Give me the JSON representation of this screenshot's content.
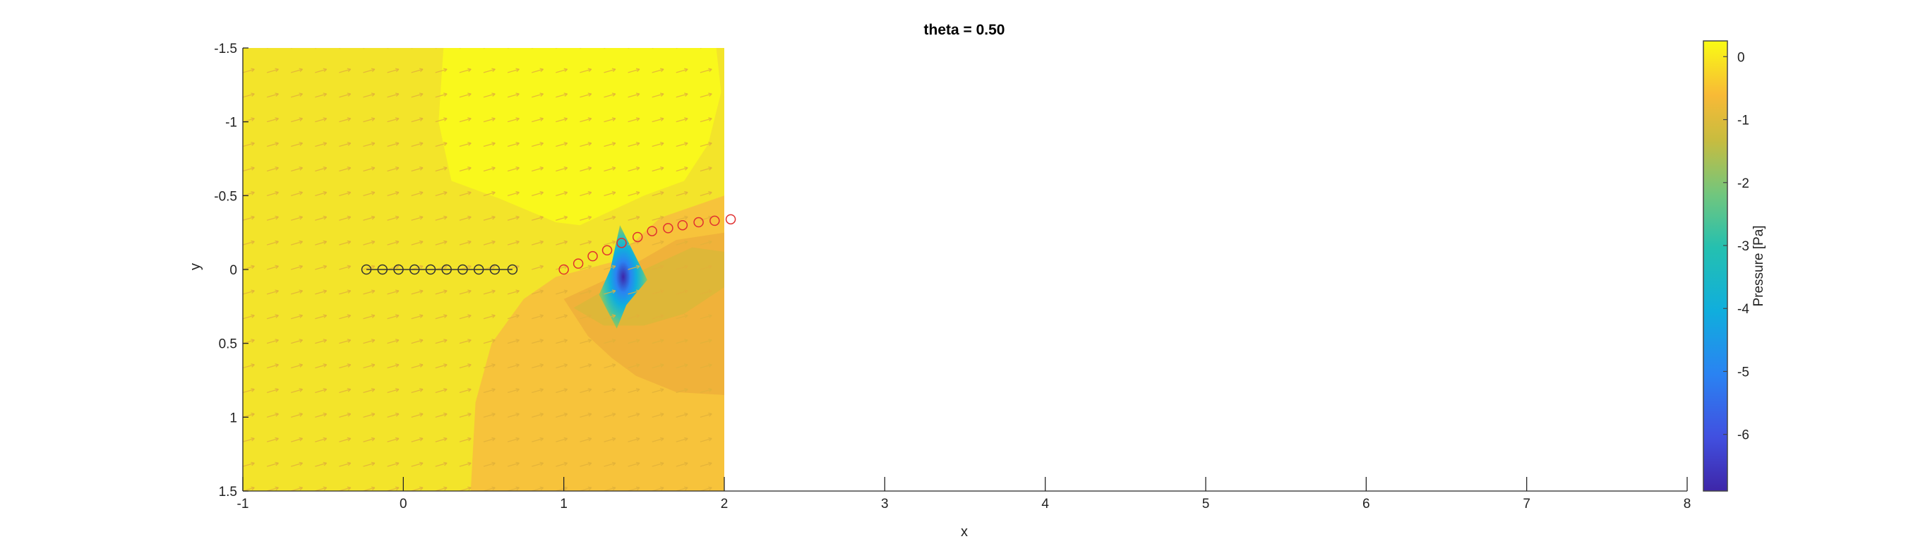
{
  "chart_data": {
    "type": "heatmap",
    "title": "theta = 0.50",
    "xlabel": "x",
    "ylabel": "y",
    "xlim": [
      -1,
      8
    ],
    "ylim": [
      -1.5,
      1.5
    ],
    "y_reversed": true,
    "x_ticks": [
      -1,
      0,
      1,
      2,
      3,
      4,
      5,
      6,
      7,
      8
    ],
    "y_ticks": [
      -1.5,
      -1,
      -0.5,
      0,
      0.5,
      1,
      1.5
    ],
    "field_extent": {
      "x": [
        -1,
        2
      ],
      "y": [
        -1.5,
        1.5
      ]
    },
    "colorbar": {
      "label": "Pressure [Pa]",
      "range": [
        -6.9,
        0.25
      ],
      "ticks": [
        0,
        -1,
        -2,
        -3,
        -4,
        -5,
        -6
      ]
    },
    "black_markers": {
      "color": "#333333",
      "connected": true,
      "x": [
        -0.23,
        -0.13,
        -0.03,
        0.07,
        0.17,
        0.27,
        0.37,
        0.47,
        0.57,
        0.68
      ],
      "y": [
        0,
        0,
        0,
        0,
        0,
        0,
        0,
        0,
        0,
        0
      ]
    },
    "red_markers": {
      "color": "#e03030",
      "connected": false,
      "x": [
        1.0,
        1.09,
        1.18,
        1.27,
        1.36,
        1.46,
        1.55,
        1.65,
        1.74,
        1.84,
        1.94,
        2.04
      ],
      "y": [
        0,
        -0.04,
        -0.09,
        -0.13,
        -0.18,
        -0.22,
        -0.26,
        -0.28,
        -0.3,
        -0.32,
        -0.33,
        -0.34
      ]
    },
    "grid": false,
    "colors": {
      "field_background": "#f3e42a",
      "high_pressure": "#f9f81c",
      "mid_pressure": "#f7c33b",
      "low_pressure": "#f0b23a",
      "vortex_low": "#3e38c8",
      "arrows": "#e2b23a"
    }
  }
}
